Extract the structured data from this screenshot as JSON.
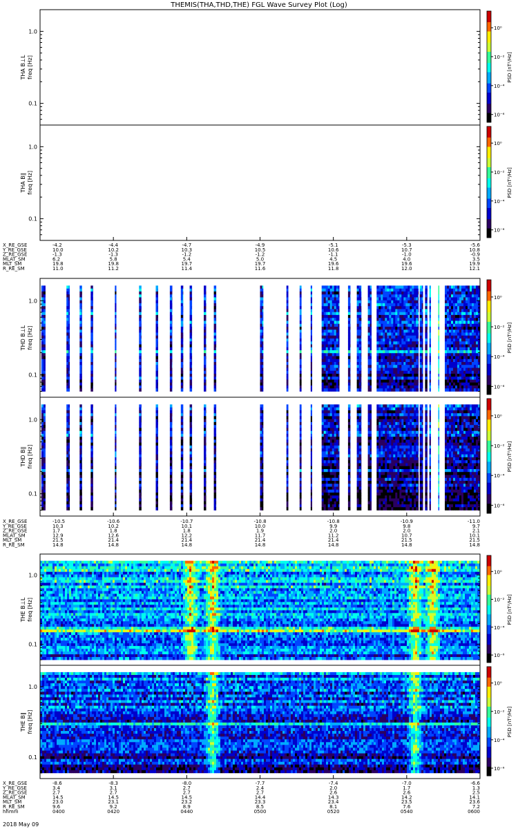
{
  "title": "THEMIS(THA,THD,THE) FGL Wave Survey Plot (Log)",
  "date_label": "2018 May 09",
  "colors": {
    "spectrogram_scale": [
      "#000000",
      "#2a0060",
      "#0000cc",
      "#0044ff",
      "#00aaff",
      "#00ffee",
      "#33ff99",
      "#ccff33",
      "#ffee00",
      "#ff6600",
      "#cc0000"
    ]
  },
  "chart_data": [
    {
      "type": "heatmap",
      "id": "tha_bll",
      "ylabel": "THA B⊥L",
      "ylabel2": "freq [Hz]",
      "yscale": "log",
      "yticks": [
        "1.0",
        "0.1"
      ],
      "yrange": [
        0.05,
        2
      ],
      "colorbar": {
        "label": "PSD [nT²/Hz]",
        "ticks": [
          "10⁰",
          "10⁻²",
          "10⁻⁴",
          "10⁻⁶"
        ]
      },
      "coverage": [],
      "activity_x": [],
      "base_level": 0.4
    },
    {
      "type": "heatmap",
      "id": "tha_bpar",
      "ylabel": "THA B∥",
      "ylabel2": "freq [Hz]",
      "yscale": "log",
      "yticks": [
        "1.0",
        "0.1"
      ],
      "yrange": [
        0.05,
        2
      ],
      "colorbar": {
        "label": "PSD [nT²/Hz]",
        "ticks": [
          "10⁰",
          "10⁻²",
          "10⁻⁴",
          "10⁻⁶"
        ]
      },
      "coverage": [],
      "activity_x": [],
      "base_level": 0.4
    },
    {
      "type": "heatmap",
      "id": "thd_bll",
      "ylabel": "THD B⊥L",
      "ylabel2": "freq [Hz]",
      "yscale": "log",
      "yticks": [
        "1.0",
        "0.1"
      ],
      "yrange": [
        0.05,
        2
      ],
      "colorbar": {
        "label": "PSD [nT²/Hz]",
        "ticks": [
          "10⁰",
          "10⁻²",
          "10⁻⁴",
          "10⁻⁶"
        ]
      },
      "coverage": [
        [
          0.003,
          0.012
        ],
        [
          0.06,
          0.067
        ],
        [
          0.09,
          0.095
        ],
        [
          0.115,
          0.12
        ],
        [
          0.17,
          0.173
        ],
        [
          0.225,
          0.23
        ],
        [
          0.263,
          0.268
        ],
        [
          0.295,
          0.3
        ],
        [
          0.32,
          0.325
        ],
        [
          0.34,
          0.345
        ],
        [
          0.372,
          0.377
        ],
        [
          0.395,
          0.4
        ],
        [
          0.5,
          0.507
        ],
        [
          0.56,
          0.564
        ],
        [
          0.59,
          0.594
        ],
        [
          0.615,
          0.618
        ],
        [
          0.64,
          0.68
        ],
        [
          0.7,
          0.705
        ],
        [
          0.72,
          0.73
        ],
        [
          0.745,
          0.753
        ],
        [
          0.765,
          0.86
        ],
        [
          0.863,
          0.87
        ],
        [
          0.875,
          0.88
        ],
        [
          0.885,
          0.888
        ],
        [
          0.905,
          0.907
        ],
        [
          0.92,
          1.0
        ]
      ],
      "activity_x": [
        0.9
      ],
      "base_level": 0.3
    },
    {
      "type": "heatmap",
      "id": "thd_bpar",
      "ylabel": "THD B∥",
      "ylabel2": "freq [Hz]",
      "yscale": "log",
      "yticks": [
        "1.0",
        "0.1"
      ],
      "yrange": [
        0.05,
        2
      ],
      "colorbar": {
        "label": "PSD [nT²/Hz]",
        "ticks": [
          "10⁰",
          "10⁻²",
          "10⁻⁴",
          "10⁻⁶"
        ]
      },
      "coverage": [
        [
          0.003,
          0.012
        ],
        [
          0.06,
          0.067
        ],
        [
          0.09,
          0.095
        ],
        [
          0.115,
          0.12
        ],
        [
          0.17,
          0.173
        ],
        [
          0.225,
          0.23
        ],
        [
          0.263,
          0.268
        ],
        [
          0.295,
          0.3
        ],
        [
          0.32,
          0.325
        ],
        [
          0.34,
          0.345
        ],
        [
          0.372,
          0.377
        ],
        [
          0.395,
          0.4
        ],
        [
          0.5,
          0.507
        ],
        [
          0.56,
          0.564
        ],
        [
          0.59,
          0.594
        ],
        [
          0.615,
          0.618
        ],
        [
          0.64,
          0.68
        ],
        [
          0.7,
          0.705
        ],
        [
          0.72,
          0.73
        ],
        [
          0.745,
          0.753
        ],
        [
          0.765,
          0.86
        ],
        [
          0.863,
          0.87
        ],
        [
          0.875,
          0.88
        ],
        [
          0.885,
          0.888
        ],
        [
          0.905,
          0.907
        ],
        [
          0.92,
          1.0
        ]
      ],
      "activity_x": [
        0.9
      ],
      "base_level": 0.25
    },
    {
      "type": "heatmap",
      "id": "the_bll",
      "ylabel": "THE B⊥L",
      "ylabel2": "freq [Hz]",
      "yscale": "log",
      "yticks": [
        "1.0",
        "0.1"
      ],
      "yrange": [
        0.05,
        2
      ],
      "colorbar": {
        "label": "PSD [nT²/Hz]",
        "ticks": [
          "10⁰",
          "10⁻²",
          "10⁻⁴",
          "10⁻⁶"
        ]
      },
      "coverage": [
        [
          0.0,
          1.0
        ]
      ],
      "activity_x": [
        0.34,
        0.39,
        0.85,
        0.89
      ],
      "base_level": 0.45
    },
    {
      "type": "heatmap",
      "id": "the_bpar",
      "ylabel": "THE B∥",
      "ylabel2": "freq [Hz]",
      "yscale": "log",
      "yticks": [
        "1.0",
        "0.1"
      ],
      "yrange": [
        0.05,
        2
      ],
      "colorbar": {
        "label": "PSD [nT²/Hz]",
        "ticks": [
          "10⁰",
          "10⁻²",
          "10⁻⁴",
          "10⁻⁶"
        ]
      },
      "coverage": [
        [
          0.0,
          1.0
        ]
      ],
      "activity_x": [
        0.39,
        0.85
      ],
      "base_level": 0.35
    }
  ],
  "ephemeris": [
    {
      "id": "tha",
      "labels": [
        "X_RE_GSE",
        "Y_RE_GSE",
        "Z_RE_GSE",
        "MLAT_SM",
        "MLT_SM",
        "R_RE_SM"
      ],
      "columns": [
        [
          "-4.2",
          "10.0",
          "-1.3",
          "6.2",
          "19.8",
          "11.0"
        ],
        [
          "-4.4",
          "10.2",
          "-1.3",
          "5.8",
          "19.8",
          "11.2"
        ],
        [
          "-4.7",
          "10.3",
          "-1.2",
          "5.4",
          "19.7",
          "11.4"
        ],
        [
          "-4.9",
          "10.5",
          "-1.2",
          "5.0",
          "19.7",
          "11.6"
        ],
        [
          "-5.1",
          "10.6",
          "-1.1",
          "4.5",
          "19.6",
          "11.8"
        ],
        [
          "-5.3",
          "10.7",
          "-1.0",
          "4.0",
          "19.6",
          "12.0"
        ],
        [
          "-5.6",
          "10.8",
          "-0.9",
          "3.5",
          "19.9",
          "12.1"
        ]
      ]
    },
    {
      "id": "thd",
      "labels": [
        "X_RE_GSE",
        "Y_RE_GSE",
        "Z_RE_GSE",
        "MLAT_SM",
        "MLT_SM",
        "R_RE_SM"
      ],
      "columns": [
        [
          "-10.5",
          "10.3",
          "1.7",
          "12.9",
          "21.5",
          "14.8"
        ],
        [
          "-10.6",
          "10.2",
          "1.8",
          "12.6",
          "21.4",
          "14.8"
        ],
        [
          "-10.7",
          "10.1",
          "1.8",
          "12.2",
          "21.4",
          "14.8"
        ],
        [
          "-10.8",
          "10.0",
          "1.9",
          "11.7",
          "21.4",
          "14.8"
        ],
        [
          "-10.8",
          "9.9",
          "2.0",
          "11.2",
          "21.4",
          "14.8"
        ],
        [
          "-10.9",
          "9.8",
          "2.0",
          "10.7",
          "21.5",
          "14.8"
        ],
        [
          "-11.0",
          "9.7",
          "2.1",
          "10.1",
          "21.5",
          "14.8"
        ]
      ]
    },
    {
      "id": "the",
      "labels": [
        "X_RE_GSE",
        "Y_RE_GSE",
        "Z_RE_GSE",
        "MLAT_SM",
        "MLT_SM",
        "R_RE_SM",
        "hhmm"
      ],
      "columns": [
        [
          "-8.6",
          "3.4",
          "2.7",
          "14.5",
          "23.0",
          "9.6",
          "0400"
        ],
        [
          "-8.3",
          "3.1",
          "2.7",
          "14.5",
          "23.1",
          "9.2",
          "0420"
        ],
        [
          "-8.0",
          "2.7",
          "2.7",
          "14.5",
          "23.2",
          "8.9",
          "0440"
        ],
        [
          "-7.7",
          "2.4",
          "2.7",
          "14.4",
          "23.3",
          "8.5",
          "0500"
        ],
        [
          "-7.4",
          "2.0",
          "2.6",
          "14.3",
          "23.4",
          "8.1",
          "0520"
        ],
        [
          "-7.0",
          "1.7",
          "2.6",
          "14.2",
          "23.5",
          "7.6",
          "0540"
        ],
        [
          "-6.6",
          "1.3",
          "2.5",
          "14.1",
          "23.6",
          "7.2",
          "0600"
        ]
      ]
    }
  ]
}
